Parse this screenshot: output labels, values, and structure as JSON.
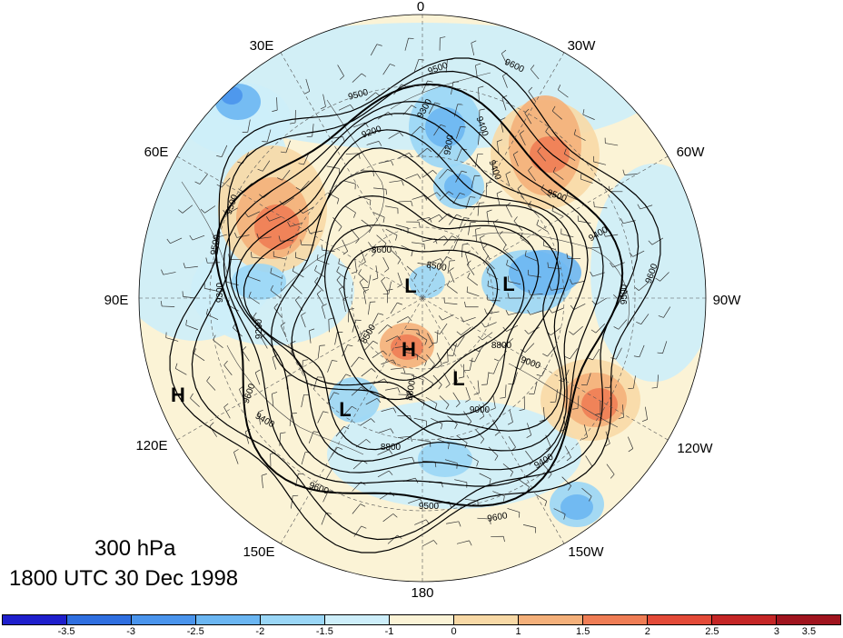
{
  "title": {
    "level": "300 hPa",
    "time": "1800 UTC 30 Dec 1998"
  },
  "longitude_labels": [
    "0",
    "30W",
    "60W",
    "90W",
    "120W",
    "150W",
    "180",
    "150E",
    "120E",
    "90E",
    "60E",
    "30E"
  ],
  "pressure_centers": [
    {
      "label": "L",
      "lon": 70,
      "lat": 78
    },
    {
      "label": "L",
      "lon": 290,
      "lat": 68
    },
    {
      "label": "H",
      "lon": 175,
      "lat": 83
    },
    {
      "label": "L",
      "lon": 200,
      "lat": 72
    },
    {
      "label": "L",
      "lon": 140,
      "lat": 60
    },
    {
      "label": "H",
      "lon": 110,
      "lat": 28
    }
  ],
  "contour_labels": [
    "9500",
    "9600",
    "9400",
    "9300",
    "9200",
    "9000",
    "8800",
    "8700",
    "8600",
    "8500",
    "9100"
  ],
  "colorbar": {
    "colors": [
      "#1f1fcc",
      "#2f6fe0",
      "#4a94ec",
      "#6bb6f2",
      "#9ad6f6",
      "#cdeefa",
      "#fbf3d6",
      "#f8d9a6",
      "#f4b07a",
      "#ef7d55",
      "#e34a38",
      "#c52626",
      "#a0141e"
    ],
    "labels": [
      "-3.5",
      "-3",
      "-2.5",
      "-2",
      "-1.5",
      "-1",
      "0",
      "1",
      "1.5",
      "2",
      "2.5",
      "3",
      "3.5"
    ]
  }
}
